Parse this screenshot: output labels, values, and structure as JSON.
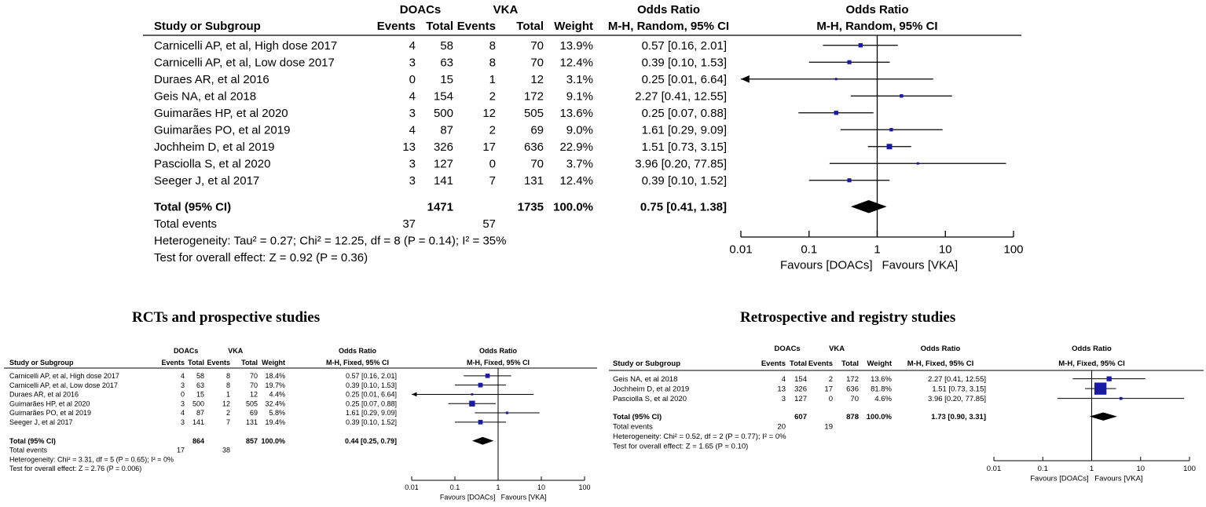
{
  "chart_data": [
    {
      "type": "forest",
      "title": "",
      "headers": {
        "group1": "DOACs",
        "group2": "VKA",
        "study": "Study or Subgroup",
        "events": "Events",
        "total": "Total",
        "weight": "Weight",
        "or_col_title": "Odds Ratio",
        "or_col_method": "M-H, Random, 95% CI",
        "plot_title": "Odds Ratio",
        "plot_method": "M-H, Random, 95% CI"
      },
      "studies": [
        {
          "name": "Carnicelli AP, et al, High dose 2017",
          "e1": "4",
          "t1": "58",
          "e2": "8",
          "t2": "70",
          "weight": "13.9%",
          "ci_text": "0.57 [0.16, 2.01]",
          "or": 0.57,
          "lo": 0.16,
          "hi": 2.01
        },
        {
          "name": "Carnicelli AP, et al, Low dose 2017",
          "e1": "3",
          "t1": "63",
          "e2": "8",
          "t2": "70",
          "weight": "12.4%",
          "ci_text": "0.39 [0.10, 1.53]",
          "or": 0.39,
          "lo": 0.1,
          "hi": 1.53
        },
        {
          "name": "Duraes AR, et al 2016",
          "e1": "0",
          "t1": "15",
          "e2": "1",
          "t2": "12",
          "weight": "3.1%",
          "ci_text": "0.25 [0.01, 6.64]",
          "or": 0.25,
          "lo": 0.01,
          "hi": 6.64
        },
        {
          "name": "Geis NA, et al 2018",
          "e1": "4",
          "t1": "154",
          "e2": "2",
          "t2": "172",
          "weight": "9.1%",
          "ci_text": "2.27 [0.41, 12.55]",
          "or": 2.27,
          "lo": 0.41,
          "hi": 12.55
        },
        {
          "name": "Guimarães HP, et al 2020",
          "e1": "3",
          "t1": "500",
          "e2": "12",
          "t2": "505",
          "weight": "13.6%",
          "ci_text": "0.25 [0.07, 0.88]",
          "or": 0.25,
          "lo": 0.07,
          "hi": 0.88
        },
        {
          "name": "Guimarães PO, et al 2019",
          "e1": "4",
          "t1": "87",
          "e2": "2",
          "t2": "69",
          "weight": "9.0%",
          "ci_text": "1.61 [0.29, 9.09]",
          "or": 1.61,
          "lo": 0.29,
          "hi": 9.09
        },
        {
          "name": "Jochheim D, et al 2019",
          "e1": "13",
          "t1": "326",
          "e2": "17",
          "t2": "636",
          "weight": "22.9%",
          "ci_text": "1.51 [0.73, 3.15]",
          "or": 1.51,
          "lo": 0.73,
          "hi": 3.15
        },
        {
          "name": "Pasciolla S, et al 2020",
          "e1": "3",
          "t1": "127",
          "e2": "0",
          "t2": "70",
          "weight": "3.7%",
          "ci_text": "3.96 [0.20, 77.85]",
          "or": 3.96,
          "lo": 0.2,
          "hi": 77.85
        },
        {
          "name": "Seeger J, et al 2017",
          "e1": "3",
          "t1": "141",
          "e2": "7",
          "t2": "131",
          "weight": "12.4%",
          "ci_text": "0.39 [0.10, 1.52]",
          "or": 0.39,
          "lo": 0.1,
          "hi": 1.52
        }
      ],
      "total": {
        "label": "Total (95% CI)",
        "t1": "1471",
        "t2": "1735",
        "weight": "100.0%",
        "ci_text": "0.75 [0.41, 1.38]",
        "or": 0.75,
        "lo": 0.41,
        "hi": 1.38
      },
      "events": {
        "label": "Total events",
        "e1": "37",
        "e2": "57"
      },
      "heterogeneity": "Heterogeneity: Tau² = 0.27; Chi² = 12.25, df = 8 (P = 0.14); I² = 35%",
      "overall": "Test for overall effect: Z = 0.92 (P = 0.36)",
      "x_scale": "log",
      "xlim": [
        0.01,
        100
      ],
      "ticks": [
        "0.01",
        "0.1",
        "1",
        "10",
        "100"
      ],
      "favours_left": "Favours [DOACs]",
      "favours_right": "Favours [VKA]"
    },
    {
      "type": "forest",
      "title": "RCTs and prospective studies",
      "headers": {
        "group1": "DOACs",
        "group2": "VKA",
        "study": "Study or Subgroup",
        "events": "Events",
        "total": "Total",
        "weight": "Weight",
        "or_col_title": "Odds Ratio",
        "or_col_method": "M-H, Fixed, 95% CI",
        "plot_title": "Odds Ratio",
        "plot_method": "M-H, Fixed, 95% CI"
      },
      "studies": [
        {
          "name": "Carnicelli AP, et al, High dose 2017",
          "e1": "4",
          "t1": "58",
          "e2": "8",
          "t2": "70",
          "weight": "18.4%",
          "ci_text": "0.57 [0.16, 2.01]",
          "or": 0.57,
          "lo": 0.16,
          "hi": 2.01
        },
        {
          "name": "Carnicelli AP, et al, Low dose 2017",
          "e1": "3",
          "t1": "63",
          "e2": "8",
          "t2": "70",
          "weight": "19.7%",
          "ci_text": "0.39 [0.10, 1.53]",
          "or": 0.39,
          "lo": 0.1,
          "hi": 1.53
        },
        {
          "name": "Duraes AR, et al 2016",
          "e1": "0",
          "t1": "15",
          "e2": "1",
          "t2": "12",
          "weight": "4.4%",
          "ci_text": "0.25 [0.01, 6.64]",
          "or": 0.25,
          "lo": 0.01,
          "hi": 6.64
        },
        {
          "name": "Guimarães HP, et al 2020",
          "e1": "3",
          "t1": "500",
          "e2": "12",
          "t2": "505",
          "weight": "32.4%",
          "ci_text": "0.25 [0.07, 0.88]",
          "or": 0.25,
          "lo": 0.07,
          "hi": 0.88
        },
        {
          "name": "Guimarães PO, et al 2019",
          "e1": "4",
          "t1": "87",
          "e2": "2",
          "t2": "69",
          "weight": "5.8%",
          "ci_text": "1.61 [0.29, 9.09]",
          "or": 1.61,
          "lo": 0.29,
          "hi": 9.09
        },
        {
          "name": "Seeger J, et al 2017",
          "e1": "3",
          "t1": "141",
          "e2": "7",
          "t2": "131",
          "weight": "19.4%",
          "ci_text": "0.39 [0.10, 1.52]",
          "or": 0.39,
          "lo": 0.1,
          "hi": 1.52
        }
      ],
      "total": {
        "label": "Total (95% CI)",
        "t1": "864",
        "t2": "857",
        "weight": "100.0%",
        "ci_text": "0.44 [0.25, 0.79]",
        "or": 0.44,
        "lo": 0.25,
        "hi": 0.79
      },
      "events": {
        "label": "Total events",
        "e1": "17",
        "e2": "38"
      },
      "heterogeneity": "Heterogeneity: Chi² = 3.31, df = 5 (P = 0.65); I² = 0%",
      "overall": "Test for overall effect: Z = 2.76 (P = 0.006)",
      "x_scale": "log",
      "xlim": [
        0.01,
        100
      ],
      "ticks": [
        "0.01",
        "0.1",
        "1",
        "10",
        "100"
      ],
      "favours_left": "Favours [DOACs]",
      "favours_right": "Favours [VKA]"
    },
    {
      "type": "forest",
      "title": "Retrospective and registry studies",
      "headers": {
        "group1": "DOACs",
        "group2": "VKA",
        "study": "Study or Subgroup",
        "events": "Events",
        "total": "Total",
        "weight": "Weight",
        "or_col_title": "Odds Ratio",
        "or_col_method": "M-H, Fixed, 95% CI",
        "plot_title": "Odds Ratio",
        "plot_method": "M-H, Fixed, 95% CI"
      },
      "studies": [
        {
          "name": "Geis NA, et al 2018",
          "e1": "4",
          "t1": "154",
          "e2": "2",
          "t2": "172",
          "weight": "13.6%",
          "ci_text": "2.27 [0.41, 12.55]",
          "or": 2.27,
          "lo": 0.41,
          "hi": 12.55
        },
        {
          "name": "Jochheim D, et al 2019",
          "e1": "13",
          "t1": "326",
          "e2": "17",
          "t2": "636",
          "weight": "81.8%",
          "ci_text": "1.51 [0.73, 3.15]",
          "or": 1.51,
          "lo": 0.73,
          "hi": 3.15
        },
        {
          "name": "Pasciolla S, et al 2020",
          "e1": "3",
          "t1": "127",
          "e2": "0",
          "t2": "70",
          "weight": "4.6%",
          "ci_text": "3.96 [0.20, 77.85]",
          "or": 3.96,
          "lo": 0.2,
          "hi": 77.85
        }
      ],
      "total": {
        "label": "Total (95% CI)",
        "t1": "607",
        "t2": "878",
        "weight": "100.0%",
        "ci_text": "1.73 [0.90, 3.31]",
        "or": 1.73,
        "lo": 0.9,
        "hi": 3.31
      },
      "events": {
        "label": "Total events",
        "e1": "20",
        "e2": "19"
      },
      "heterogeneity": "Heterogeneity: Chi² = 0.52, df = 2 (P = 0.77); I² = 0%",
      "overall": "Test for overall effect: Z = 1.65 (P = 0.10)",
      "x_scale": "log",
      "xlim": [
        0.01,
        100
      ],
      "ticks": [
        "0.01",
        "0.1",
        "1",
        "10",
        "100"
      ],
      "favours_left": "Favours [DOACs]",
      "favours_right": "Favours [VKA]"
    }
  ],
  "colors": {
    "marker": "#1a1aa6",
    "line": "#000000"
  }
}
